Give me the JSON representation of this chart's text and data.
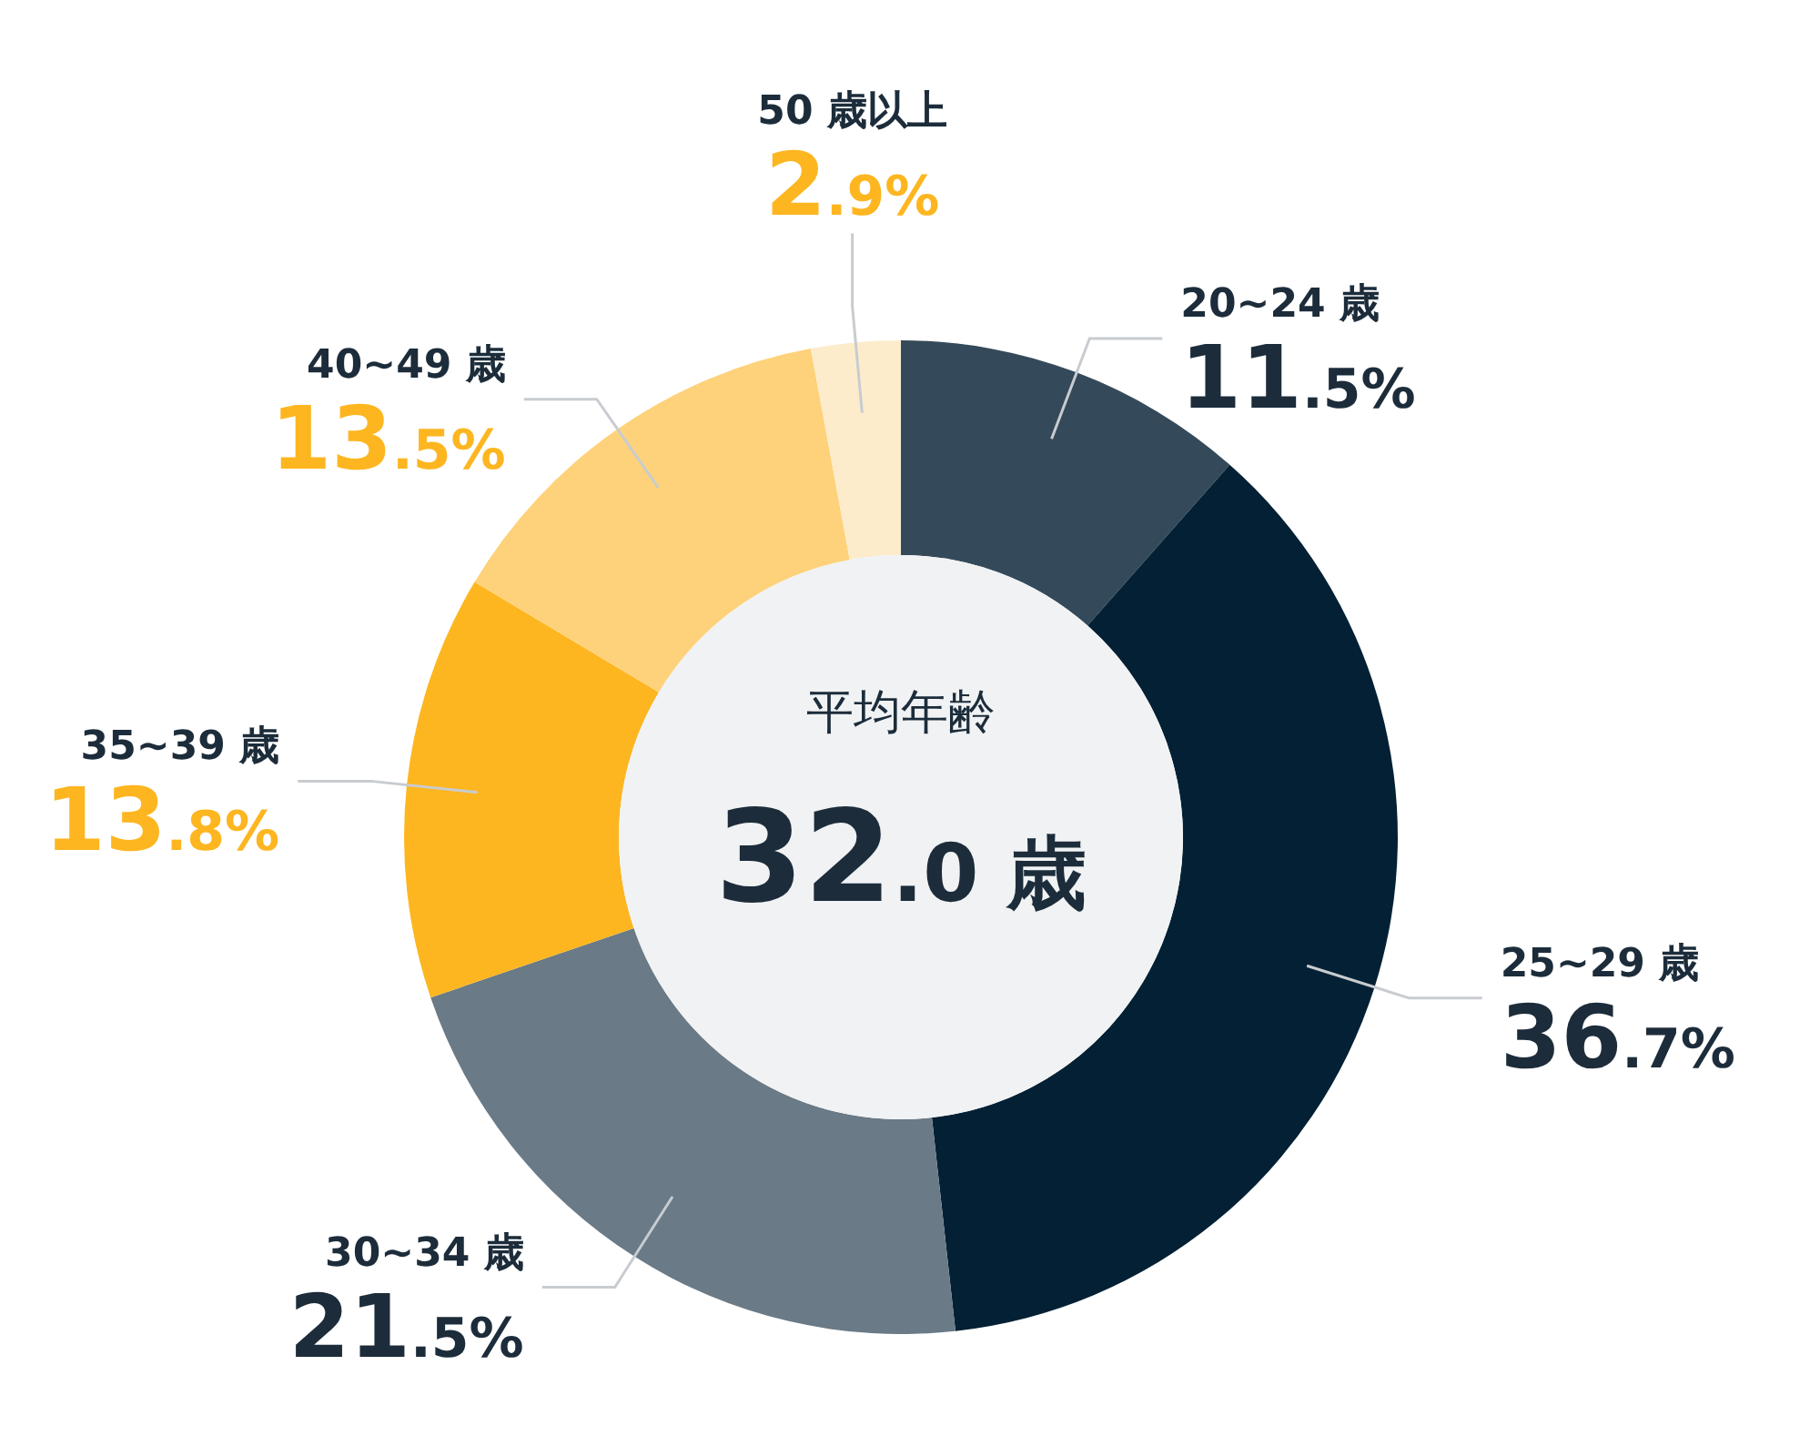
{
  "chart_data": {
    "type": "donut",
    "categories": [
      "20~24 歳",
      "25~29 歳",
      "30~34 歳",
      "35~39 歳",
      "40~49 歳",
      "50 歳以上"
    ],
    "values": [
      11.5,
      36.7,
      21.5,
      13.8,
      13.5,
      2.9
    ],
    "colors": [
      "#344a5a",
      "#032034",
      "#6a7a86",
      "#fdb620",
      "#fed27a",
      "#fdeccc"
    ],
    "value_labels": [
      "11.5%",
      "36.7%",
      "21.5%",
      "13.8%",
      "13.5%",
      "2.9%"
    ],
    "annotations": [
      "平均年齢",
      "32.0 歳"
    ]
  }
}
